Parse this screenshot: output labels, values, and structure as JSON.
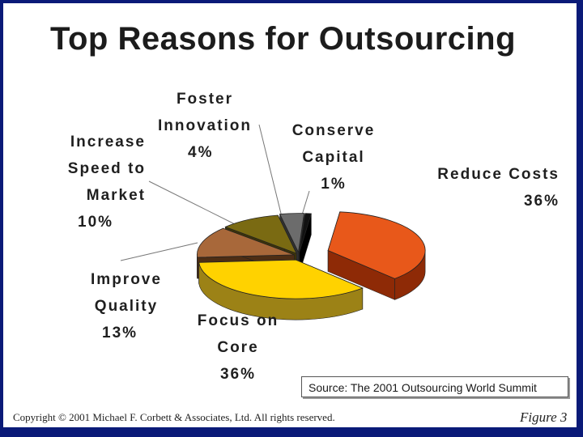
{
  "chart_data": {
    "type": "pie",
    "title": "Top Reasons for Outsourcing",
    "slices": [
      {
        "name": "Reduce Costs",
        "value": 36,
        "label": "36%",
        "color": "#e8581a",
        "side": "#8e2a06"
      },
      {
        "name": "Focus on Core",
        "value": 36,
        "label": "36%",
        "color": "#ffd200",
        "side": "#9c8216"
      },
      {
        "name": "Improve Quality",
        "value": 13,
        "label": "13%",
        "color": "#a8683a",
        "side": "#4e2e14"
      },
      {
        "name": "Increase Speed to Market",
        "value": 10,
        "label": "10%",
        "color": "#7a6a12",
        "side": "#3e3408"
      },
      {
        "name": "Foster Innovation",
        "value": 4,
        "label": "4%",
        "color": "#6c6c6c",
        "side": "#303030"
      },
      {
        "name": "Conserve Capital",
        "value": 1,
        "label": "1%",
        "color": "#111111",
        "side": "#000000"
      }
    ],
    "source": "Source: The 2001 Outsourcing World Summit"
  },
  "labels": {
    "reduce_costs": {
      "l1": "Reduce Costs",
      "pct": "36%"
    },
    "focus_core": {
      "l1": "Focus on",
      "l2": "Core",
      "pct": "36%"
    },
    "improve_quality": {
      "l1": "Improve",
      "l2": "Quality",
      "pct": "13%"
    },
    "increase_speed": {
      "l1": "Increase",
      "l2": "Speed to",
      "l3": "Market",
      "pct": "10%"
    },
    "foster_innovation": {
      "l1": "Foster",
      "l2": "Innovation",
      "pct": "4%"
    },
    "conserve_capital": {
      "l1": "Conserve",
      "l2": "Capital",
      "pct": "1%"
    }
  },
  "footer": {
    "copyright": "Copyright © 2001 Michael F. Corbett & Associates, Ltd.  All rights reserved.",
    "figure": "Figure 3"
  }
}
